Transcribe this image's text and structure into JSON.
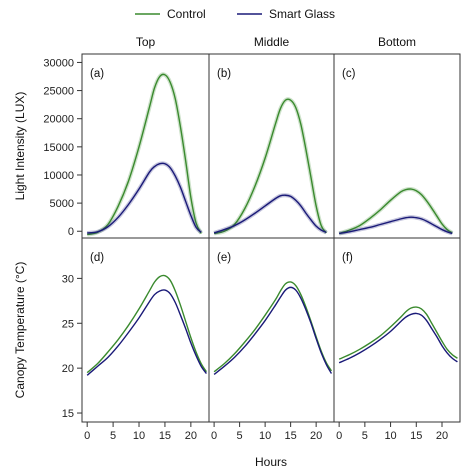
{
  "chart_data": {
    "type": "line",
    "legend": {
      "placement": "top-center",
      "entries": [
        {
          "name": "Control",
          "color": "#3a8a2e"
        },
        {
          "name": "Smart Glass",
          "color": "#1a1a78"
        }
      ]
    },
    "columns": [
      "Top",
      "Middle",
      "Bottom"
    ],
    "xlabel": "Hours",
    "x_ticks": [
      0,
      5,
      10,
      15,
      20
    ],
    "xlim": [
      -1,
      23.5
    ],
    "rows": [
      {
        "ylabel": "Light Intensity (LUX)",
        "ylim": [
          -1200,
          31500
        ],
        "y_ticks": [
          0,
          5000,
          10000,
          15000,
          20000,
          25000,
          30000
        ],
        "panels": [
          {
            "label": "(a)",
            "column": "Top",
            "series": [
              {
                "name": "Control",
                "x": [
                  0,
                  2,
                  4,
                  6,
                  8,
                  10,
                  12,
                  13,
                  14,
                  15,
                  16,
                  17,
                  18,
                  19,
                  20,
                  21,
                  22
                ],
                "y": [
                  -600,
                  -200,
                  1200,
                  4500,
                  9000,
                  15000,
                  22000,
                  25500,
                  27500,
                  27800,
                  26500,
                  23500,
                  18500,
                  12500,
                  6000,
                  1500,
                  -400
                ]
              },
              {
                "name": "Smart Glass",
                "x": [
                  0,
                  2,
                  4,
                  6,
                  8,
                  10,
                  12,
                  13,
                  14,
                  15,
                  16,
                  17,
                  18,
                  19,
                  20,
                  21,
                  22
                ],
                "y": [
                  -300,
                  -100,
                  800,
                  2500,
                  4800,
                  7500,
                  10500,
                  11500,
                  12000,
                  12000,
                  11300,
                  9800,
                  7800,
                  5300,
                  2800,
                  700,
                  -200
                ]
              }
            ]
          },
          {
            "label": "(b)",
            "column": "Middle",
            "series": [
              {
                "name": "Control",
                "x": [
                  0,
                  2,
                  4,
                  6,
                  8,
                  10,
                  12,
                  13,
                  14,
                  15,
                  16,
                  17,
                  18,
                  19,
                  20,
                  21,
                  22
                ],
                "y": [
                  -400,
                  0,
                  1200,
                  4000,
                  8000,
                  13000,
                  19000,
                  21800,
                  23300,
                  23300,
                  22000,
                  19000,
                  14500,
                  9500,
                  4500,
                  1000,
                  -300
                ]
              },
              {
                "name": "Smart Glass",
                "x": [
                  0,
                  2,
                  4,
                  6,
                  8,
                  10,
                  12,
                  13,
                  14,
                  15,
                  16,
                  17,
                  18,
                  19,
                  20,
                  21,
                  22
                ],
                "y": [
                  -300,
                  300,
                  1000,
                  2000,
                  3200,
                  4500,
                  5800,
                  6300,
                  6400,
                  6200,
                  5500,
                  4500,
                  3200,
                  2000,
                  900,
                  200,
                  -200
                ]
              }
            ]
          },
          {
            "label": "(c)",
            "column": "Bottom",
            "series": [
              {
                "name": "Control",
                "x": [
                  0,
                  2,
                  4,
                  6,
                  8,
                  10,
                  12,
                  13,
                  14,
                  15,
                  16,
                  17,
                  18,
                  19,
                  20,
                  21,
                  22
                ],
                "y": [
                  -400,
                  200,
                  1000,
                  2300,
                  3800,
                  5500,
                  7000,
                  7400,
                  7500,
                  7200,
                  6500,
                  5400,
                  4100,
                  2700,
                  1300,
                  300,
                  -300
                ]
              },
              {
                "name": "Smart Glass",
                "x": [
                  0,
                  2,
                  4,
                  6,
                  8,
                  10,
                  12,
                  13,
                  14,
                  15,
                  16,
                  17,
                  18,
                  19,
                  20,
                  21,
                  22
                ],
                "y": [
                  -400,
                  -100,
                  300,
                  700,
                  1200,
                  1700,
                  2200,
                  2400,
                  2500,
                  2400,
                  2200,
                  1800,
                  1300,
                  800,
                  300,
                  -100,
                  -400
                ]
              }
            ]
          }
        ]
      },
      {
        "ylabel": "Canopy Temperature (°C)",
        "ylim": [
          14,
          34.5
        ],
        "y_ticks": [
          15,
          20,
          25,
          30
        ],
        "panels": [
          {
            "label": "(d)",
            "column": "Top",
            "series": [
              {
                "name": "Control",
                "x": [
                  0,
                  2,
                  4,
                  6,
                  8,
                  10,
                  12,
                  13,
                  14,
                  15,
                  16,
                  17,
                  18,
                  19,
                  20,
                  21,
                  22,
                  23
                ],
                "y": [
                  19.5,
                  20.5,
                  21.8,
                  23.2,
                  24.8,
                  26.6,
                  28.6,
                  29.6,
                  30.2,
                  30.3,
                  29.8,
                  28.6,
                  27.0,
                  25.2,
                  23.4,
                  21.8,
                  20.5,
                  19.6
                ]
              },
              {
                "name": "Smart Glass",
                "x": [
                  0,
                  2,
                  4,
                  6,
                  8,
                  10,
                  12,
                  13,
                  14,
                  15,
                  16,
                  17,
                  18,
                  19,
                  20,
                  21,
                  22,
                  23
                ],
                "y": [
                  19.2,
                  20.2,
                  21.2,
                  22.5,
                  24.0,
                  25.6,
                  27.4,
                  28.2,
                  28.6,
                  28.7,
                  28.3,
                  27.3,
                  25.9,
                  24.4,
                  22.8,
                  21.4,
                  20.2,
                  19.4
                ]
              }
            ]
          },
          {
            "label": "(e)",
            "column": "Middle",
            "series": [
              {
                "name": "Control",
                "x": [
                  0,
                  2,
                  4,
                  6,
                  8,
                  10,
                  12,
                  13,
                  14,
                  15,
                  16,
                  17,
                  18,
                  19,
                  20,
                  21,
                  22,
                  23
                ],
                "y": [
                  19.6,
                  20.5,
                  21.6,
                  22.9,
                  24.3,
                  25.9,
                  27.6,
                  28.6,
                  29.4,
                  29.6,
                  29.2,
                  28.2,
                  26.8,
                  25.2,
                  23.5,
                  21.9,
                  20.6,
                  19.7
                ]
              },
              {
                "name": "Smart Glass",
                "x": [
                  0,
                  2,
                  4,
                  6,
                  8,
                  10,
                  12,
                  13,
                  14,
                  15,
                  16,
                  17,
                  18,
                  19,
                  20,
                  21,
                  22,
                  23
                ],
                "y": [
                  19.3,
                  20.2,
                  21.2,
                  22.4,
                  23.8,
                  25.3,
                  27.0,
                  27.9,
                  28.7,
                  29.0,
                  28.7,
                  27.8,
                  26.5,
                  25.0,
                  23.3,
                  21.7,
                  20.4,
                  19.4
                ]
              }
            ]
          },
          {
            "label": "(f)",
            "column": "Bottom",
            "series": [
              {
                "name": "Control",
                "x": [
                  0,
                  2,
                  4,
                  6,
                  8,
                  10,
                  12,
                  13,
                  14,
                  15,
                  16,
                  17,
                  18,
                  19,
                  20,
                  21,
                  22,
                  23
                ],
                "y": [
                  21.0,
                  21.5,
                  22.1,
                  22.8,
                  23.6,
                  24.6,
                  25.7,
                  26.3,
                  26.7,
                  26.8,
                  26.6,
                  26.0,
                  25.0,
                  24.0,
                  23.0,
                  22.1,
                  21.5,
                  21.1
                ]
              },
              {
                "name": "Smart Glass",
                "x": [
                  0,
                  2,
                  4,
                  6,
                  8,
                  10,
                  12,
                  13,
                  14,
                  15,
                  16,
                  17,
                  18,
                  19,
                  20,
                  21,
                  22,
                  23
                ],
                "y": [
                  20.6,
                  21.1,
                  21.7,
                  22.4,
                  23.2,
                  24.1,
                  25.2,
                  25.7,
                  26.0,
                  26.1,
                  25.9,
                  25.3,
                  24.4,
                  23.5,
                  22.5,
                  21.7,
                  21.1,
                  20.7
                ]
              }
            ]
          }
        ]
      }
    ],
    "grid": false
  }
}
